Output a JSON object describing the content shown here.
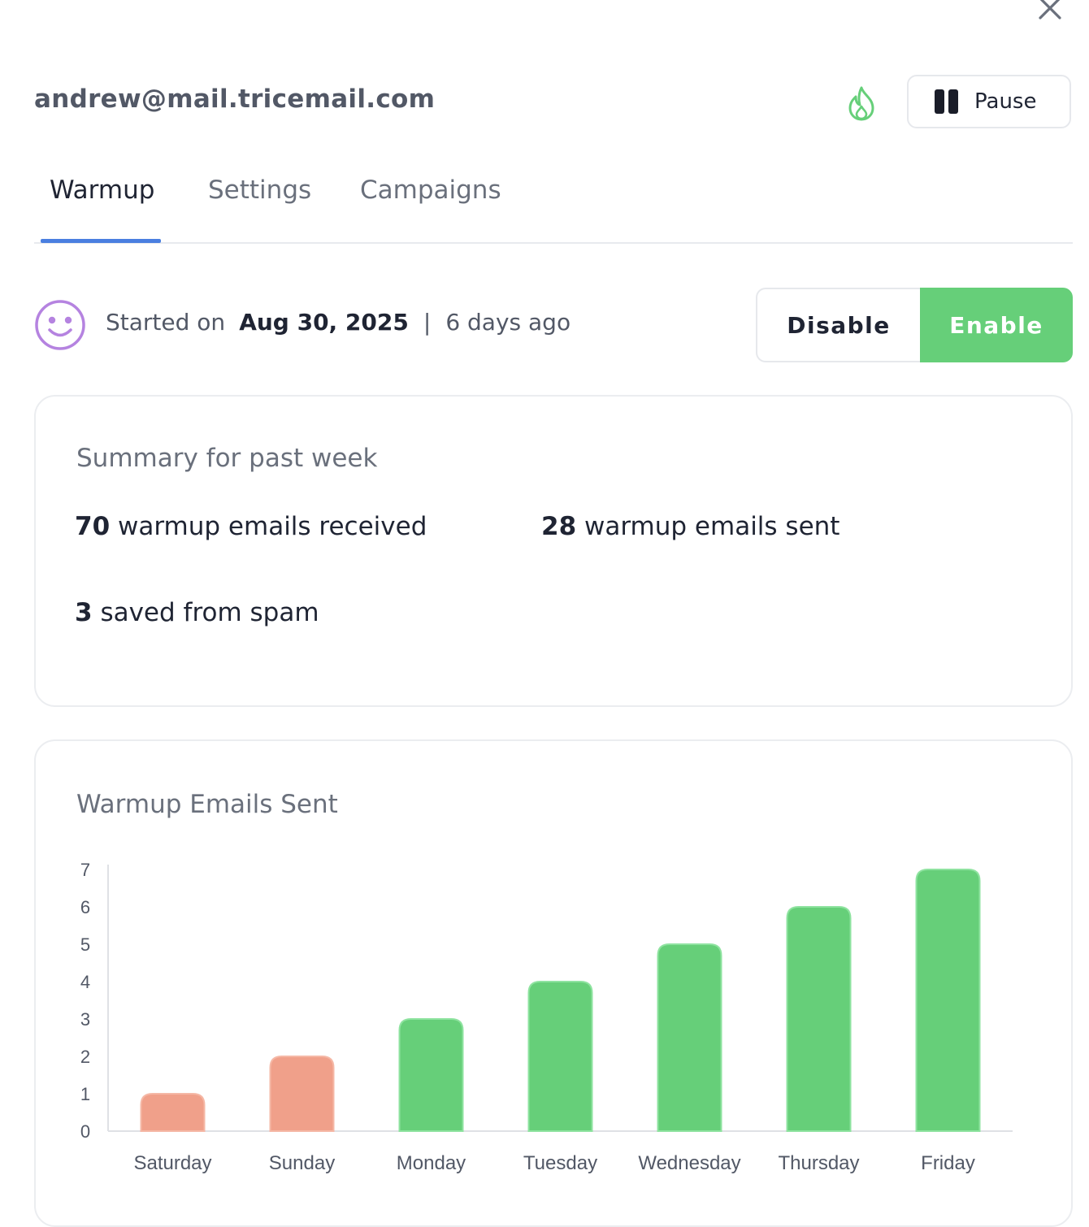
{
  "header": {
    "email": "andrew@mail.tricemail.com",
    "pause_label": "Pause",
    "close_icon": "close-icon",
    "flame_icon": "flame-icon"
  },
  "tabs": [
    {
      "label": "Warmup",
      "active": true
    },
    {
      "label": "Settings",
      "active": false
    },
    {
      "label": "Campaigns",
      "active": false
    }
  ],
  "status": {
    "started_prefix": "Started on",
    "started_date": "Aug 30, 2025",
    "separator": "|",
    "relative": "6 days ago",
    "disable_label": "Disable",
    "enable_label": "Enable",
    "selected": "Enable"
  },
  "summary": {
    "title": "Summary for past week",
    "received_count": "70",
    "received_label": "warmup emails received",
    "sent_count": "28",
    "sent_label": "warmup emails sent",
    "spam_count": "3",
    "spam_label": "saved from spam"
  },
  "colors": {
    "accent_green": "#66cf79",
    "low_bar": "#f0a08a",
    "tab_underline": "#4a7fe0",
    "smiley": "#b583e0"
  },
  "chart_data": {
    "type": "bar",
    "title": "Warmup Emails Sent",
    "categories": [
      "Saturday",
      "Sunday",
      "Monday",
      "Tuesday",
      "Wednesday",
      "Thursday",
      "Friday"
    ],
    "values": [
      1,
      2,
      3,
      4,
      5,
      6,
      7
    ],
    "bar_colors": [
      "#f0a08a",
      "#f0a08a",
      "#66cf79",
      "#66cf79",
      "#66cf79",
      "#66cf79",
      "#66cf79"
    ],
    "yticks": [
      0,
      1,
      2,
      3,
      4,
      5,
      6,
      7
    ],
    "ylim": [
      0,
      7
    ],
    "xlabel": "",
    "ylabel": "",
    "grid": false
  }
}
